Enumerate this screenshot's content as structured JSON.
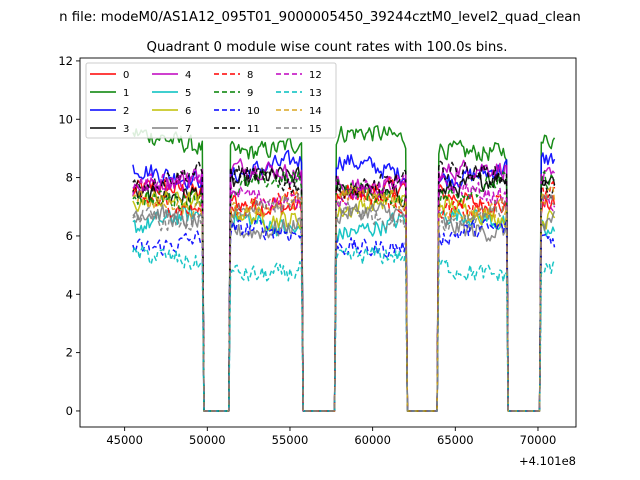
{
  "chart_data": {
    "type": "line",
    "suptitle": "n file: modeM0/AS1A12_095T01_9000005450_39244cztM0_level2_quad_clean",
    "title": "Quadrant 0 module wise count rates with 100.0s bins.",
    "xlabel": "",
    "ylabel": "",
    "offset_label": "+4.101e8",
    "xlim": [
      42300,
      72300
    ],
    "ylim": [
      -0.55,
      12.1
    ],
    "xticks": [
      45000,
      50000,
      55000,
      60000,
      65000,
      70000
    ],
    "xtick_labels": [
      "45000",
      "50000",
      "55000",
      "60000",
      "65000",
      "70000"
    ],
    "yticks": [
      0,
      2,
      4,
      6,
      8,
      10,
      12
    ],
    "ytick_labels": [
      "0",
      "2",
      "4",
      "6",
      "8",
      "10",
      "12"
    ],
    "grid": false,
    "legend_position": "top-left",
    "x_range": [
      45500,
      71000
    ],
    "bin_width": 100,
    "gaps": [
      [
        49700,
        51400
      ],
      [
        55700,
        57800
      ],
      [
        62000,
        64000
      ],
      [
        68100,
        70200
      ]
    ],
    "series": [
      {
        "name": "0",
        "color": "#ff0000",
        "style": "solid",
        "level": 7.3
      },
      {
        "name": "1",
        "color": "#008000",
        "style": "solid",
        "level": 9.2
      },
      {
        "name": "2",
        "color": "#0000ff",
        "style": "solid",
        "level": 8.3
      },
      {
        "name": "3",
        "color": "#000000",
        "style": "solid",
        "level": 7.7
      },
      {
        "name": "4",
        "color": "#bf00bf",
        "style": "solid",
        "level": 8.0
      },
      {
        "name": "5",
        "color": "#00bfbf",
        "style": "solid",
        "level": 6.4
      },
      {
        "name": "6",
        "color": "#bfbf00",
        "style": "solid",
        "level": 6.9
      },
      {
        "name": "7",
        "color": "#808080",
        "style": "solid",
        "level": 6.5
      },
      {
        "name": "8",
        "color": "#ff0000",
        "style": "dashed",
        "level": 7.2
      },
      {
        "name": "9",
        "color": "#008000",
        "style": "dashed",
        "level": 7.6
      },
      {
        "name": "10",
        "color": "#0000ff",
        "style": "dashed",
        "level": 5.9
      },
      {
        "name": "11",
        "color": "#000000",
        "style": "dashed",
        "level": 7.9
      },
      {
        "name": "12",
        "color": "#bf00bf",
        "style": "dashed",
        "level": 7.5
      },
      {
        "name": "13",
        "color": "#00bfbf",
        "style": "dashed",
        "level": 5.0
      },
      {
        "name": "14",
        "color": "#daa520",
        "style": "dashed",
        "level": 7.1
      },
      {
        "name": "15",
        "color": "#808080",
        "style": "dashed",
        "level": 6.8
      }
    ]
  }
}
